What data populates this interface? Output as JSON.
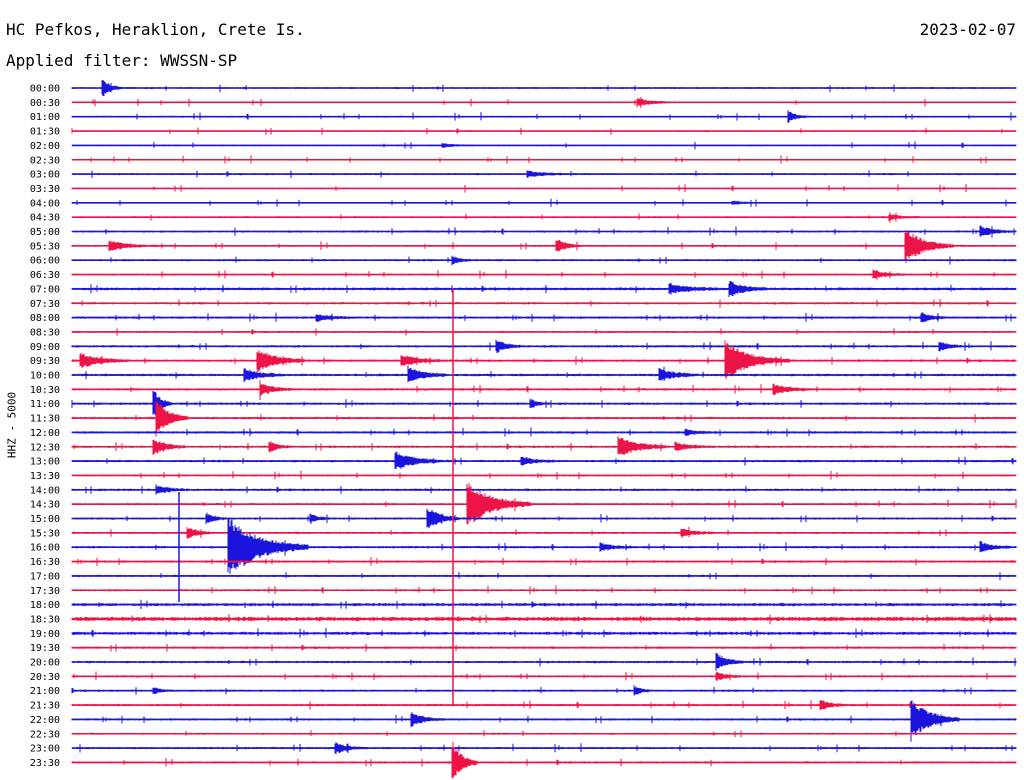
{
  "header": {
    "station": "HC Pefkos, Heraklion, Crete Is.",
    "date": "2023-02-07",
    "filter": "Applied filter: WWSSN-SP"
  },
  "colors": {
    "blue": "#1a14dc",
    "red": "#ee1346"
  },
  "chart_data": {
    "type": "line",
    "title": "",
    "ylabel": "HHZ - 5000",
    "row_labels": [
      "00:00",
      "00:30",
      "01:00",
      "01:30",
      "02:00",
      "02:30",
      "03:00",
      "03:30",
      "04:00",
      "04:30",
      "05:00",
      "05:30",
      "06:00",
      "06:30",
      "07:00",
      "07:30",
      "08:00",
      "08:30",
      "09:00",
      "09:30",
      "10:00",
      "10:30",
      "11:00",
      "11:30",
      "12:00",
      "12:30",
      "13:00",
      "13:30",
      "14:00",
      "14:30",
      "15:00",
      "15:30",
      "16:00",
      "16:30",
      "17:00",
      "17:30",
      "18:00",
      "18:30",
      "19:00",
      "19:30",
      "20:00",
      "20:30",
      "21:00",
      "21:30",
      "22:00",
      "22:30",
      "23:00",
      "23:30"
    ],
    "row_colors": "alternating blue / red, starting blue",
    "noise_levels": [
      0.8,
      0.6,
      0.7,
      0.6,
      0.6,
      0.6,
      0.8,
      0.6,
      0.6,
      0.7,
      0.9,
      0.8,
      0.9,
      0.8,
      1.2,
      1.0,
      1.0,
      0.8,
      1.0,
      1.0,
      1.1,
      1.0,
      1.0,
      1.0,
      1.0,
      1.0,
      1.0,
      0.8,
      1.0,
      0.9,
      0.9,
      0.9,
      1.0,
      0.9,
      0.9,
      0.9,
      1.3,
      1.8,
      1.3,
      1.0,
      1.0,
      0.9,
      0.9,
      0.9,
      0.9,
      0.8,
      0.9,
      0.9
    ],
    "events": [
      {
        "row": 0,
        "x_min": 1.0,
        "amplitude": 8,
        "duration_min": 0.6
      },
      {
        "row": 1,
        "x_min": 18.0,
        "amplitude": 4,
        "duration_min": 1.2
      },
      {
        "row": 2,
        "x_min": 22.8,
        "amplitude": 5,
        "duration_min": 0.6
      },
      {
        "row": 4,
        "x_min": 11.8,
        "amplitude": 2,
        "duration_min": 1.0
      },
      {
        "row": 6,
        "x_min": 14.5,
        "amplitude": 3,
        "duration_min": 1.5
      },
      {
        "row": 8,
        "x_min": 21.0,
        "amplitude": 2,
        "duration_min": 1.0
      },
      {
        "row": 9,
        "x_min": 26.0,
        "amplitude": 3,
        "duration_min": 1.0
      },
      {
        "row": 10,
        "x_min": 28.9,
        "amplitude": 5,
        "duration_min": 1.0
      },
      {
        "row": 11,
        "x_min": 1.2,
        "amplitude": 5,
        "duration_min": 1.5
      },
      {
        "row": 11,
        "x_min": 15.4,
        "amplitude": 7,
        "duration_min": 0.8
      },
      {
        "row": 11,
        "x_min": 26.5,
        "amplitude": 18,
        "duration_min": 1.5
      },
      {
        "row": 12,
        "x_min": 12.1,
        "amplitude": 4,
        "duration_min": 0.6
      },
      {
        "row": 13,
        "x_min": 25.5,
        "amplitude": 4,
        "duration_min": 1.0
      },
      {
        "row": 14,
        "x_min": 19.0,
        "amplitude": 5,
        "duration_min": 1.5
      },
      {
        "row": 14,
        "x_min": 20.9,
        "amplitude": 7,
        "duration_min": 1.2
      },
      {
        "row": 16,
        "x_min": 7.8,
        "amplitude": 3,
        "duration_min": 1.2
      },
      {
        "row": 16,
        "x_min": 27.0,
        "amplitude": 5,
        "duration_min": 0.8
      },
      {
        "row": 18,
        "x_min": 13.5,
        "amplitude": 6,
        "duration_min": 0.8
      },
      {
        "row": 18,
        "x_min": 27.6,
        "amplitude": 4,
        "duration_min": 0.8
      },
      {
        "row": 19,
        "x_min": 0.3,
        "amplitude": 7,
        "duration_min": 1.5
      },
      {
        "row": 19,
        "x_min": 5.9,
        "amplitude": 12,
        "duration_min": 1.5
      },
      {
        "row": 19,
        "x_min": 10.5,
        "amplitude": 6,
        "duration_min": 1.2
      },
      {
        "row": 19,
        "x_min": 20.8,
        "amplitude": 18,
        "duration_min": 2.0
      },
      {
        "row": 20,
        "x_min": 5.5,
        "amplitude": 6,
        "duration_min": 1.2
      },
      {
        "row": 20,
        "x_min": 10.7,
        "amplitude": 8,
        "duration_min": 1.2
      },
      {
        "row": 20,
        "x_min": 18.7,
        "amplitude": 6,
        "duration_min": 1.2
      },
      {
        "row": 21,
        "x_min": 6.0,
        "amplitude": 6,
        "duration_min": 1.0
      },
      {
        "row": 21,
        "x_min": 22.3,
        "amplitude": 5,
        "duration_min": 1.2
      },
      {
        "row": 22,
        "x_min": 2.6,
        "amplitude": 14,
        "duration_min": 0.6
      },
      {
        "row": 22,
        "x_min": 14.6,
        "amplitude": 4,
        "duration_min": 0.6
      },
      {
        "row": 23,
        "x_min": 2.7,
        "amplitude": 18,
        "duration_min": 1.0
      },
      {
        "row": 24,
        "x_min": 19.5,
        "amplitude": 3,
        "duration_min": 1.0
      },
      {
        "row": 25,
        "x_min": 2.6,
        "amplitude": 8,
        "duration_min": 1.0
      },
      {
        "row": 25,
        "x_min": 6.3,
        "amplitude": 5,
        "duration_min": 0.6
      },
      {
        "row": 25,
        "x_min": 17.4,
        "amplitude": 10,
        "duration_min": 1.5
      },
      {
        "row": 25,
        "x_min": 19.2,
        "amplitude": 4,
        "duration_min": 1.2
      },
      {
        "row": 26,
        "x_min": 10.3,
        "amplitude": 9,
        "duration_min": 1.5
      },
      {
        "row": 26,
        "x_min": 14.3,
        "amplitude": 4,
        "duration_min": 1.0
      },
      {
        "row": 28,
        "x_min": 2.7,
        "amplitude": 4,
        "duration_min": 1.0
      },
      {
        "row": 29,
        "x_min": 12.6,
        "amplitude": 22,
        "duration_min": 2.0
      },
      {
        "row": 30,
        "x_min": 4.3,
        "amplitude": 5,
        "duration_min": 0.6
      },
      {
        "row": 30,
        "x_min": 7.6,
        "amplitude": 4,
        "duration_min": 0.6
      },
      {
        "row": 30,
        "x_min": 11.3,
        "amplitude": 12,
        "duration_min": 1.0
      },
      {
        "row": 31,
        "x_min": 3.7,
        "amplitude": 5,
        "duration_min": 0.8
      },
      {
        "row": 31,
        "x_min": 19.4,
        "amplitude": 4,
        "duration_min": 1.0
      },
      {
        "row": 32,
        "x_min": 5.0,
        "amplitude": 30,
        "duration_min": 2.5
      },
      {
        "row": 32,
        "x_min": 16.8,
        "amplitude": 4,
        "duration_min": 1.0
      },
      {
        "row": 32,
        "x_min": 28.9,
        "amplitude": 5,
        "duration_min": 1.0
      },
      {
        "row": 40,
        "x_min": 20.5,
        "amplitude": 8,
        "duration_min": 0.8
      },
      {
        "row": 41,
        "x_min": 20.5,
        "amplitude": 4,
        "duration_min": 0.8
      },
      {
        "row": 42,
        "x_min": 2.6,
        "amplitude": 3,
        "duration_min": 0.6
      },
      {
        "row": 42,
        "x_min": 17.9,
        "amplitude": 4,
        "duration_min": 0.6
      },
      {
        "row": 43,
        "x_min": 23.8,
        "amplitude": 5,
        "duration_min": 0.8
      },
      {
        "row": 44,
        "x_min": 10.8,
        "amplitude": 7,
        "duration_min": 1.0
      },
      {
        "row": 44,
        "x_min": 26.7,
        "amplitude": 20,
        "duration_min": 1.5
      },
      {
        "row": 46,
        "x_min": 8.4,
        "amplitude": 5,
        "duration_min": 1.0
      },
      {
        "row": 47,
        "x_min": 12.1,
        "amplitude": 20,
        "duration_min": 0.8
      }
    ]
  },
  "icons": {
    "event-marker": "vertical-spike"
  }
}
